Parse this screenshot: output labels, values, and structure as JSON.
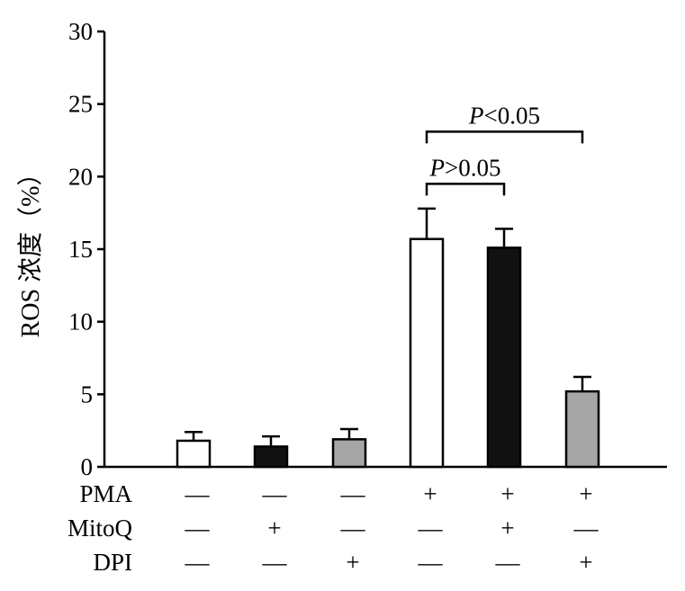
{
  "chart_data": {
    "type": "bar",
    "ylabel": "ROS 浓度（%）",
    "ylim": [
      0,
      30
    ],
    "yticks": [
      0,
      5,
      10,
      15,
      20,
      25,
      30
    ],
    "grid": false,
    "bars": [
      {
        "value": 1.8,
        "error": 0.6,
        "fill": "#ffffff"
      },
      {
        "value": 1.4,
        "error": 0.7,
        "fill": "#111111"
      },
      {
        "value": 1.9,
        "error": 0.7,
        "fill": "#a6a6a6"
      },
      {
        "value": 15.7,
        "error": 2.1,
        "fill": "#ffffff"
      },
      {
        "value": 15.1,
        "error": 1.3,
        "fill": "#111111"
      },
      {
        "value": 5.2,
        "error": 1.0,
        "fill": "#a6a6a6"
      }
    ],
    "treatment_rows": [
      {
        "label": "PMA",
        "signs": [
          "—",
          "—",
          "—",
          "+",
          "+",
          "+"
        ]
      },
      {
        "label": "MitoQ",
        "signs": [
          "—",
          "+",
          "—",
          "—",
          "+",
          "—"
        ]
      },
      {
        "label": "DPI",
        "signs": [
          "—",
          "—",
          "+",
          "—",
          "—",
          "+"
        ]
      }
    ],
    "comparisons": [
      {
        "from": 4,
        "to": 5,
        "p_italic": "P",
        "p_rest": ">0.05",
        "bracket_y": 19.5
      },
      {
        "from": 4,
        "to": 6,
        "p_italic": "P",
        "p_rest": "<0.05",
        "bracket_y": 23.1
      }
    ]
  }
}
